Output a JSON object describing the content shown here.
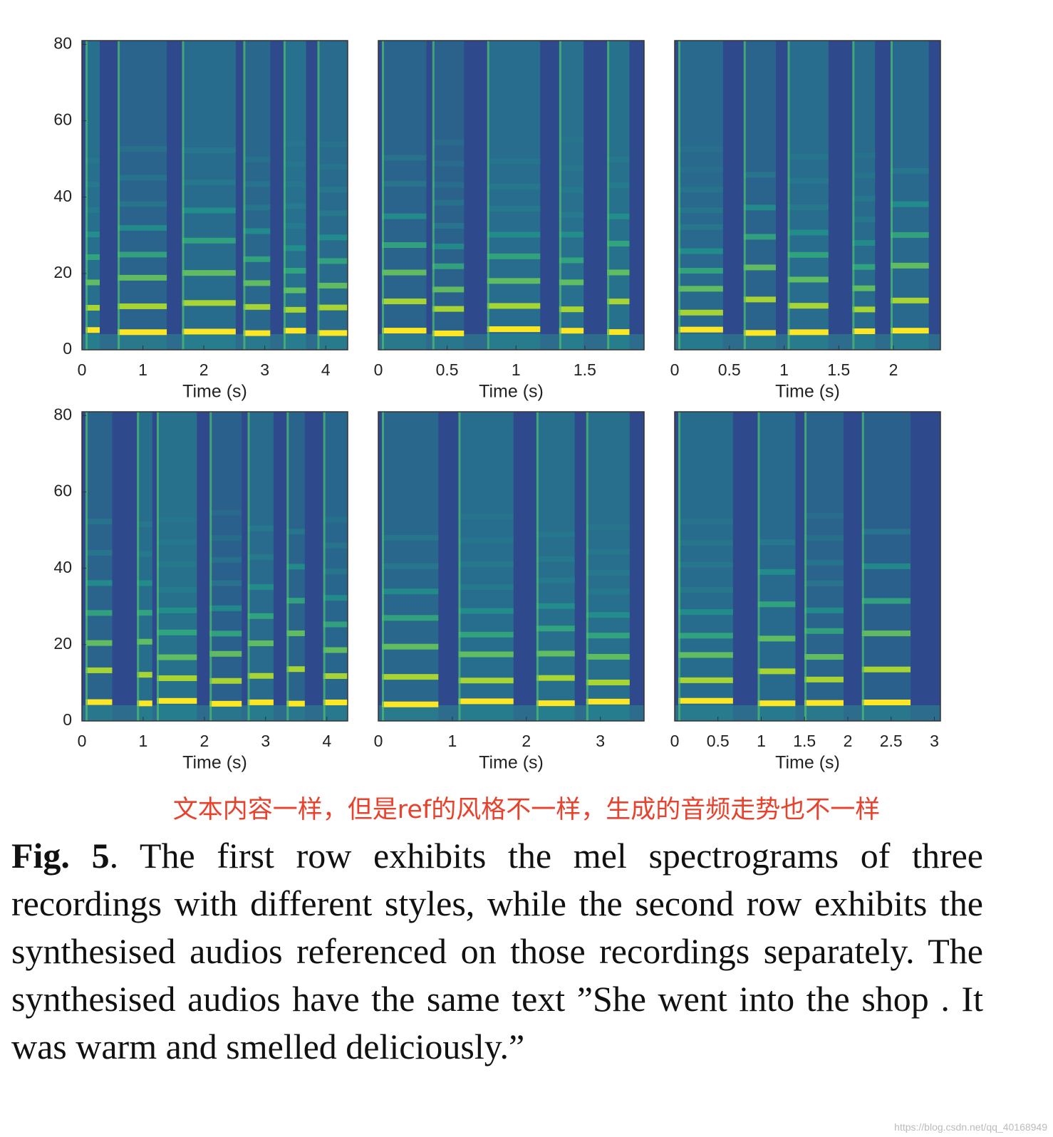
{
  "figure": {
    "panels": [
      {
        "xlim": [
          0,
          4.36
        ],
        "xticks": [
          0,
          1,
          2,
          3,
          4
        ],
        "ylim": [
          0,
          81
        ],
        "yticks": [
          0,
          20,
          40,
          60,
          80
        ],
        "xlabel": "Time (s)"
      },
      {
        "xlim": [
          0,
          1.93
        ],
        "xticks": [
          0,
          0.5,
          1,
          1.5
        ],
        "ylim": [
          0,
          81
        ],
        "xlabel": "Time (s)"
      },
      {
        "xlim": [
          0,
          2.43
        ],
        "xticks": [
          0,
          0.5,
          1,
          1.5,
          2
        ],
        "ylim": [
          0,
          81
        ],
        "xlabel": "Time (s)"
      },
      {
        "xlim": [
          0,
          4.34
        ],
        "xticks": [
          0,
          1,
          2,
          3,
          4
        ],
        "ylim": [
          0,
          81
        ],
        "yticks": [
          0,
          20,
          40,
          60,
          80
        ],
        "xlabel": "Time (s)"
      },
      {
        "xlim": [
          0,
          3.59
        ],
        "xticks": [
          0,
          1,
          2,
          3
        ],
        "ylim": [
          0,
          81
        ],
        "xlabel": "Time (s)"
      },
      {
        "xlim": [
          0,
          3.07
        ],
        "xticks": [
          0,
          0.5,
          1,
          1.5,
          2,
          2.5,
          3
        ],
        "ylim": [
          0,
          81
        ],
        "xlabel": "Time (s)"
      }
    ]
  },
  "annotation": "文本内容一样，但是ref的风格不一样，生成的音频走势也不一样",
  "caption": {
    "label": "Fig. 5",
    "text": ".   The first row exhibits the mel spectrograms of three recordings with different styles, while the second row exhibits the synthesised audios referenced on those recordings separately. The synthesised audios have the same text ”She went into the shop .  It was warm and smelled deliciously.”"
  },
  "watermark": "https://blog.csdn.net/qq_40168949"
}
